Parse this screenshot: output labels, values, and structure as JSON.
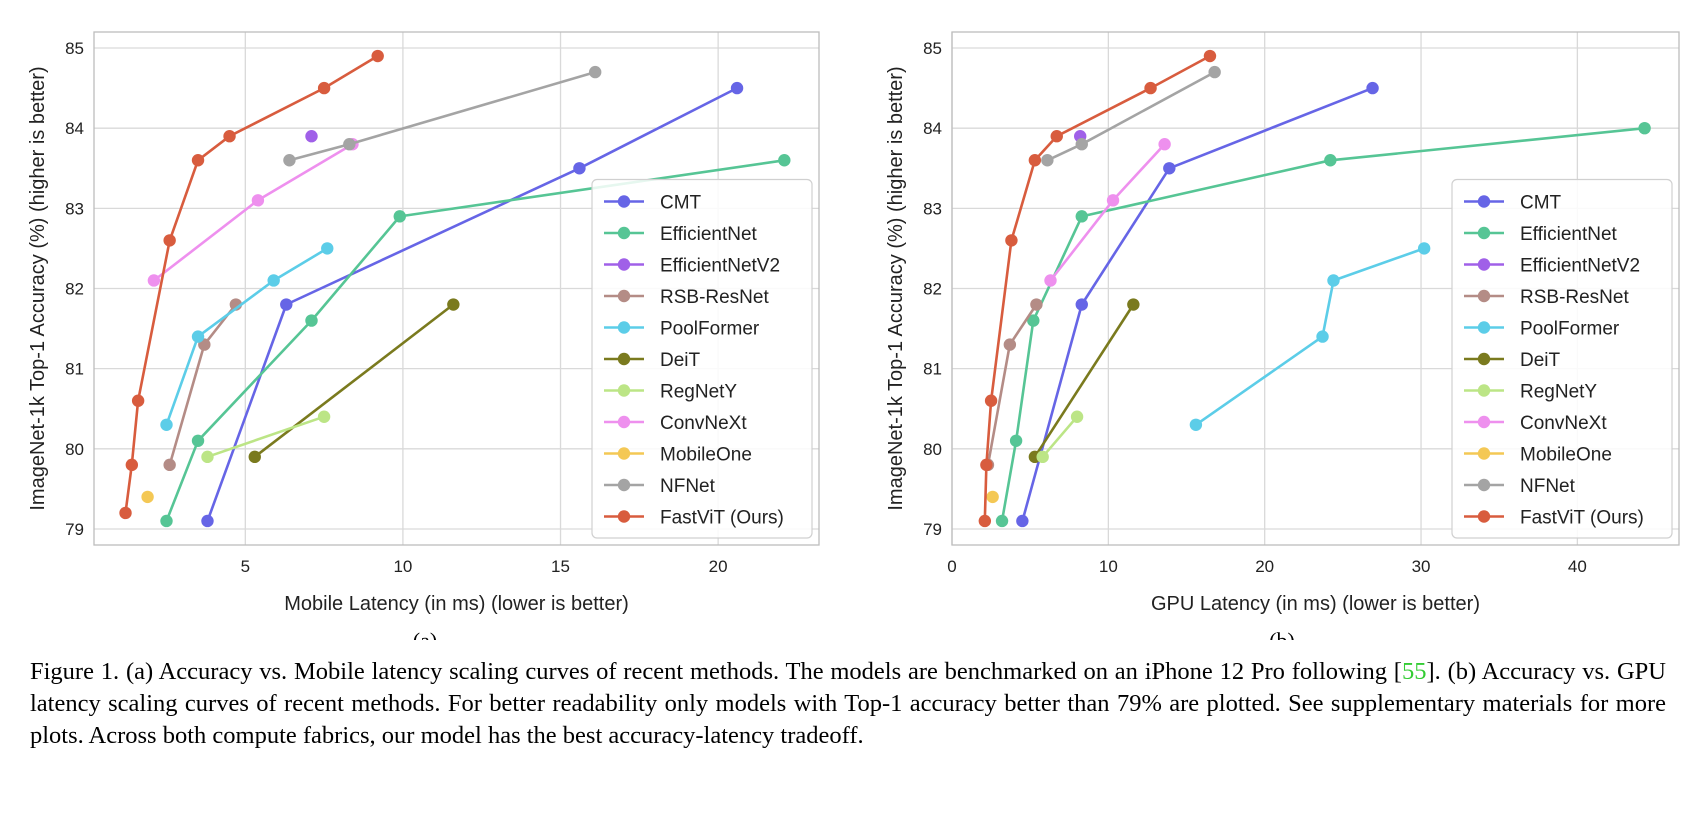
{
  "chart_data": [
    {
      "type": "line",
      "panel_label": "(a)",
      "xlabel": "Mobile Latency (in ms) (lower is better)",
      "ylabel": "ImageNet-1k Top-1 Accuracy (%) (higher is better)",
      "xlim": [
        0.2,
        23.2
      ],
      "ylim": [
        78.8,
        85.2
      ],
      "xticks": [
        5,
        10,
        15,
        20
      ],
      "yticks": [
        79,
        80,
        81,
        82,
        83,
        84,
        85
      ],
      "grid": true,
      "legend_position": "lower-right",
      "series": [
        {
          "name": "CMT",
          "color": "#6665e6",
          "points": [
            [
              3.8,
              79.1
            ],
            [
              6.3,
              81.8
            ],
            [
              15.6,
              83.5
            ],
            [
              20.6,
              84.5
            ]
          ]
        },
        {
          "name": "EfficientNet",
          "color": "#56c595",
          "points": [
            [
              2.5,
              79.1
            ],
            [
              3.5,
              80.1
            ],
            [
              7.1,
              81.6
            ],
            [
              9.9,
              82.9
            ],
            [
              22.1,
              83.6
            ]
          ]
        },
        {
          "name": "EfficientNetV2",
          "color": "#a060e8",
          "points": [
            [
              7.1,
              83.9
            ]
          ]
        },
        {
          "name": "RSB-ResNet",
          "color": "#b48c86",
          "points": [
            [
              2.6,
              79.8
            ],
            [
              3.7,
              81.3
            ],
            [
              4.7,
              81.8
            ]
          ]
        },
        {
          "name": "PoolFormer",
          "color": "#5ccde8",
          "points": [
            [
              2.5,
              80.3
            ],
            [
              3.5,
              81.4
            ],
            [
              5.9,
              82.1
            ],
            [
              7.6,
              82.5
            ]
          ]
        },
        {
          "name": "DeiT",
          "color": "#7a7a1e",
          "points": [
            [
              5.3,
              79.9
            ],
            [
              11.6,
              81.8
            ]
          ]
        },
        {
          "name": "RegNetY",
          "color": "#bce586",
          "points": [
            [
              3.8,
              79.9
            ],
            [
              7.5,
              80.4
            ]
          ]
        },
        {
          "name": "ConvNeXt",
          "color": "#ee90ee",
          "points": [
            [
              2.1,
              82.1
            ],
            [
              5.4,
              83.1
            ],
            [
              8.4,
              83.8
            ]
          ]
        },
        {
          "name": "MobileOne",
          "color": "#f4c855",
          "points": [
            [
              1.9,
              79.4
            ]
          ]
        },
        {
          "name": "NFNet",
          "color": "#a4a4a4",
          "points": [
            [
              6.4,
              83.6
            ],
            [
              8.3,
              83.8
            ],
            [
              16.1,
              84.7
            ]
          ]
        },
        {
          "name": "FastViT (Ours)",
          "color": "#d85c3e",
          "points": [
            [
              1.2,
              79.2
            ],
            [
              1.4,
              79.8
            ],
            [
              1.6,
              80.6
            ],
            [
              2.6,
              82.6
            ],
            [
              3.5,
              83.6
            ],
            [
              4.5,
              83.9
            ],
            [
              7.5,
              84.5
            ],
            [
              9.2,
              84.9
            ]
          ]
        }
      ]
    },
    {
      "type": "line",
      "panel_label": "(b)",
      "xlabel": "GPU Latency (in ms) (lower is better)",
      "ylabel": "ImageNet-1k Top-1 Accuracy (%) (higher is better)",
      "xlim": [
        0,
        46.5
      ],
      "ylim": [
        78.8,
        85.2
      ],
      "xticks": [
        0,
        10,
        20,
        30,
        40
      ],
      "yticks": [
        79,
        80,
        81,
        82,
        83,
        84,
        85
      ],
      "grid": true,
      "legend_position": "lower-right",
      "series": [
        {
          "name": "CMT",
          "color": "#6665e6",
          "points": [
            [
              4.5,
              79.1
            ],
            [
              8.3,
              81.8
            ],
            [
              13.9,
              83.5
            ],
            [
              26.9,
              84.5
            ]
          ]
        },
        {
          "name": "EfficientNet",
          "color": "#56c595",
          "points": [
            [
              3.2,
              79.1
            ],
            [
              4.1,
              80.1
            ],
            [
              5.2,
              81.6
            ],
            [
              8.3,
              82.9
            ],
            [
              24.2,
              83.6
            ],
            [
              44.3,
              84.0
            ]
          ]
        },
        {
          "name": "EfficientNetV2",
          "color": "#a060e8",
          "points": [
            [
              8.2,
              83.9
            ]
          ]
        },
        {
          "name": "RSB-ResNet",
          "color": "#b48c86",
          "points": [
            [
              2.3,
              79.8
            ],
            [
              3.7,
              81.3
            ],
            [
              5.4,
              81.8
            ]
          ]
        },
        {
          "name": "PoolFormer",
          "color": "#5ccde8",
          "points": [
            [
              15.6,
              80.3
            ],
            [
              23.7,
              81.4
            ],
            [
              24.4,
              82.1
            ],
            [
              30.2,
              82.5
            ]
          ]
        },
        {
          "name": "DeiT",
          "color": "#7a7a1e",
          "points": [
            [
              5.3,
              79.9
            ],
            [
              11.6,
              81.8
            ]
          ]
        },
        {
          "name": "RegNetY",
          "color": "#bce586",
          "points": [
            [
              5.8,
              79.9
            ],
            [
              8.0,
              80.4
            ]
          ]
        },
        {
          "name": "ConvNeXt",
          "color": "#ee90ee",
          "points": [
            [
              6.3,
              82.1
            ],
            [
              10.3,
              83.1
            ],
            [
              13.6,
              83.8
            ]
          ]
        },
        {
          "name": "MobileOne",
          "color": "#f4c855",
          "points": [
            [
              2.6,
              79.4
            ]
          ]
        },
        {
          "name": "NFNet",
          "color": "#a4a4a4",
          "points": [
            [
              6.1,
              83.6
            ],
            [
              8.3,
              83.8
            ],
            [
              16.8,
              84.7
            ]
          ]
        },
        {
          "name": "FastViT (Ours)",
          "color": "#d85c3e",
          "points": [
            [
              2.1,
              79.1
            ],
            [
              2.2,
              79.8
            ],
            [
              2.5,
              80.6
            ],
            [
              3.8,
              82.6
            ],
            [
              5.3,
              83.6
            ],
            [
              6.7,
              83.9
            ],
            [
              12.7,
              84.5
            ],
            [
              16.5,
              84.9
            ]
          ]
        }
      ]
    }
  ],
  "caption": {
    "prefix": "Figure 1. (a) Accuracy vs. Mobile latency scaling curves of recent methods. The models are benchmarked on an iPhone 12 Pro following [",
    "ref": "55",
    "suffix": "]. (b) Accuracy vs. GPU latency scaling curves of recent methods. For better readability only models with Top-1 accuracy better than 79% are plotted. See supplementary materials for more plots. Across both compute fabrics, our model has the best accuracy-latency tradeoff."
  }
}
